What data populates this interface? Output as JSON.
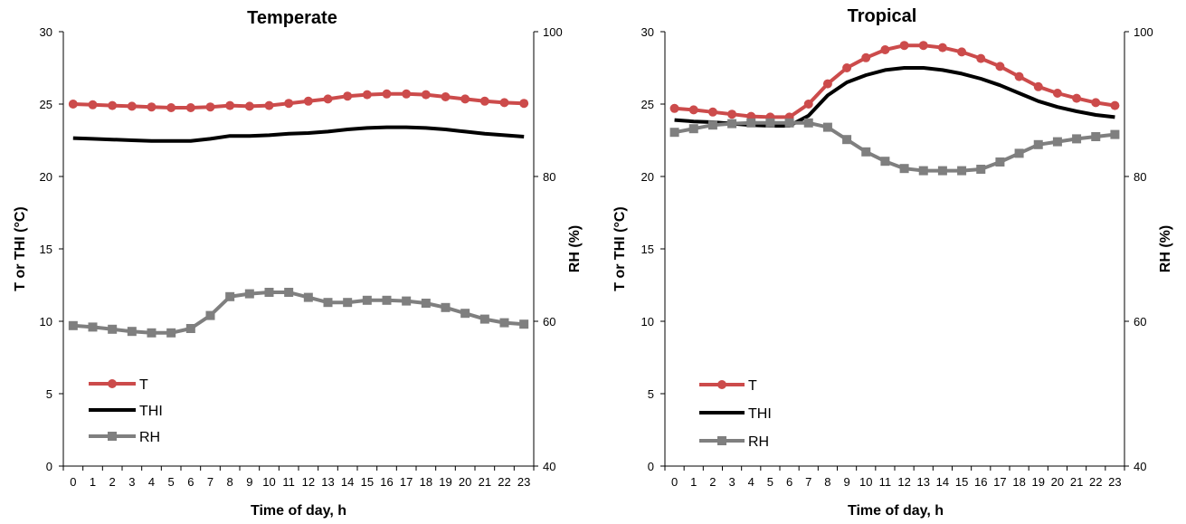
{
  "colors": {
    "T": "#cc4b4b",
    "THI": "#000000",
    "RH": "#7f7f7f"
  },
  "chart_data": [
    {
      "type": "line",
      "title": "Temperate",
      "xlabel": "Time of day, h",
      "ylabel": "T or THI (°C)",
      "y2label": "RH (%)",
      "categories": [
        "0",
        "1",
        "2",
        "3",
        "4",
        "5",
        "6",
        "7",
        "8",
        "9",
        "10",
        "11",
        "12",
        "13",
        "14",
        "15",
        "16",
        "17",
        "18",
        "19",
        "20",
        "21",
        "22",
        "23"
      ],
      "ylim": [
        0,
        30
      ],
      "yticks": [
        "0",
        "5",
        "10",
        "15",
        "20",
        "25",
        "30"
      ],
      "y2lim": [
        40,
        100
      ],
      "y2ticks": [
        "40",
        "60",
        "80",
        "100"
      ],
      "legend": {
        "position": "bottom-left",
        "entries": [
          "T",
          "THI",
          "RH"
        ]
      },
      "grid": false,
      "series": [
        {
          "name": "T",
          "axis": "left",
          "marker": "circle",
          "values": [
            25.0,
            24.95,
            24.9,
            24.85,
            24.8,
            24.75,
            24.75,
            24.8,
            24.9,
            24.85,
            24.9,
            25.05,
            25.2,
            25.35,
            25.55,
            25.65,
            25.7,
            25.7,
            25.65,
            25.5,
            25.35,
            25.2,
            25.1,
            25.05
          ]
        },
        {
          "name": "THI",
          "axis": "left",
          "marker": "none",
          "values": [
            22.65,
            22.6,
            22.55,
            22.5,
            22.45,
            22.45,
            22.45,
            22.6,
            22.8,
            22.8,
            22.85,
            22.95,
            23.0,
            23.1,
            23.25,
            23.35,
            23.4,
            23.4,
            23.35,
            23.25,
            23.1,
            22.95,
            22.85,
            22.75
          ]
        },
        {
          "name": "RH",
          "axis": "right",
          "marker": "square",
          "values": [
            59.4,
            59.2,
            58.9,
            58.6,
            58.4,
            58.4,
            59.0,
            60.8,
            63.4,
            63.8,
            64.0,
            64.0,
            63.3,
            62.6,
            62.6,
            62.9,
            62.9,
            62.8,
            62.5,
            61.9,
            61.1,
            60.3,
            59.8,
            59.6
          ]
        }
      ]
    },
    {
      "type": "line",
      "title": "Tropical",
      "xlabel": "Time of day, h",
      "ylabel": "T or THI (°C)",
      "y2label": "RH (%)",
      "categories": [
        "0",
        "1",
        "2",
        "3",
        "4",
        "5",
        "6",
        "7",
        "8",
        "9",
        "10",
        "11",
        "12",
        "13",
        "14",
        "15",
        "16",
        "17",
        "18",
        "19",
        "20",
        "21",
        "22",
        "23"
      ],
      "ylim": [
        0,
        30
      ],
      "yticks": [
        "0",
        "5",
        "10",
        "15",
        "20",
        "25",
        "30"
      ],
      "y2lim": [
        40,
        100
      ],
      "y2ticks": [
        "40",
        "60",
        "80",
        "100"
      ],
      "legend": {
        "position": "bottom-left",
        "entries": [
          "T",
          "THI",
          "RH"
        ]
      },
      "grid": false,
      "series": [
        {
          "name": "T",
          "axis": "left",
          "marker": "circle",
          "values": [
            24.7,
            24.6,
            24.45,
            24.3,
            24.15,
            24.1,
            24.1,
            25.0,
            26.4,
            27.5,
            28.2,
            28.75,
            29.05,
            29.05,
            28.9,
            28.6,
            28.15,
            27.6,
            26.9,
            26.2,
            25.75,
            25.4,
            25.1,
            24.9
          ]
        },
        {
          "name": "THI",
          "axis": "left",
          "marker": "none",
          "values": [
            23.9,
            23.8,
            23.75,
            23.65,
            23.55,
            23.5,
            23.5,
            24.2,
            25.6,
            26.5,
            27.0,
            27.35,
            27.5,
            27.5,
            27.35,
            27.1,
            26.75,
            26.3,
            25.75,
            25.2,
            24.8,
            24.5,
            24.25,
            24.1
          ]
        },
        {
          "name": "RH",
          "axis": "right",
          "marker": "square",
          "values": [
            86.1,
            86.6,
            87.1,
            87.3,
            87.4,
            87.4,
            87.4,
            87.4,
            86.8,
            85.1,
            83.4,
            82.1,
            81.1,
            80.8,
            80.8,
            80.8,
            81.0,
            82.0,
            83.2,
            84.4,
            84.8,
            85.2,
            85.5,
            85.8
          ]
        }
      ]
    }
  ]
}
